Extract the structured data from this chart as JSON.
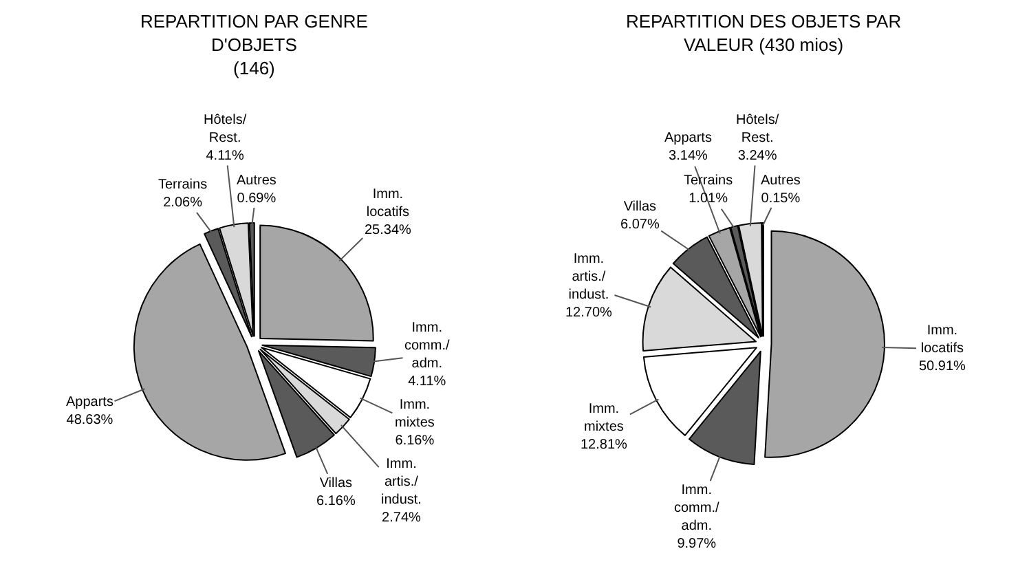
{
  "chart_data": [
    {
      "type": "pie",
      "title": "REPARTITION PAR GENRE\nD'OBJETS\n(146)",
      "legend": false,
      "categories": [
        "Imm.\nlocatifs",
        "Imm.\ncomm./\nadm.",
        "Imm.\nmixtes",
        "Imm.\nartis./\nindust.",
        "Villas",
        "Apparts",
        "Terrains",
        "Hôtels/\nRest.",
        "Autres"
      ],
      "values": [
        25.34,
        4.11,
        6.16,
        2.74,
        6.16,
        48.63,
        2.06,
        4.11,
        0.69
      ],
      "value_labels": [
        "25.34%",
        "4.11%",
        "6.16%",
        "2.74%",
        "6.16%",
        "48.63%",
        "2.06%",
        "4.11%",
        "0.69%"
      ],
      "colors": [
        "#a6a6a6",
        "#5a5a5a",
        "#ffffff",
        "#d9d9d9",
        "#5a5a5a",
        "#a6a6a6",
        "#5a5a5a",
        "#d9d9d9",
        "#5a5a5a"
      ]
    },
    {
      "type": "pie",
      "title": "REPARTITION DES OBJETS PAR\nVALEUR (430 mios)",
      "legend": false,
      "categories": [
        "Imm.\nlocatifs",
        "Imm.\ncomm./\nadm.",
        "Imm.\nmixtes",
        "Imm.\nartis./\nindust.",
        "Villas",
        "Apparts",
        "Terrains",
        "Hôtels/\nRest.",
        "Autres"
      ],
      "values": [
        50.91,
        9.97,
        12.81,
        12.7,
        6.07,
        3.14,
        1.01,
        3.24,
        0.15
      ],
      "value_labels": [
        "50.91%",
        "9.97%",
        "12.81%",
        "12.70%",
        "6.07%",
        "3.14%",
        "1.01%",
        "3.24%",
        "0.15%"
      ],
      "colors": [
        "#a6a6a6",
        "#5a5a5a",
        "#ffffff",
        "#d9d9d9",
        "#5a5a5a",
        "#a6a6a6",
        "#5a5a5a",
        "#d9d9d9",
        "#5a5a5a"
      ]
    }
  ]
}
